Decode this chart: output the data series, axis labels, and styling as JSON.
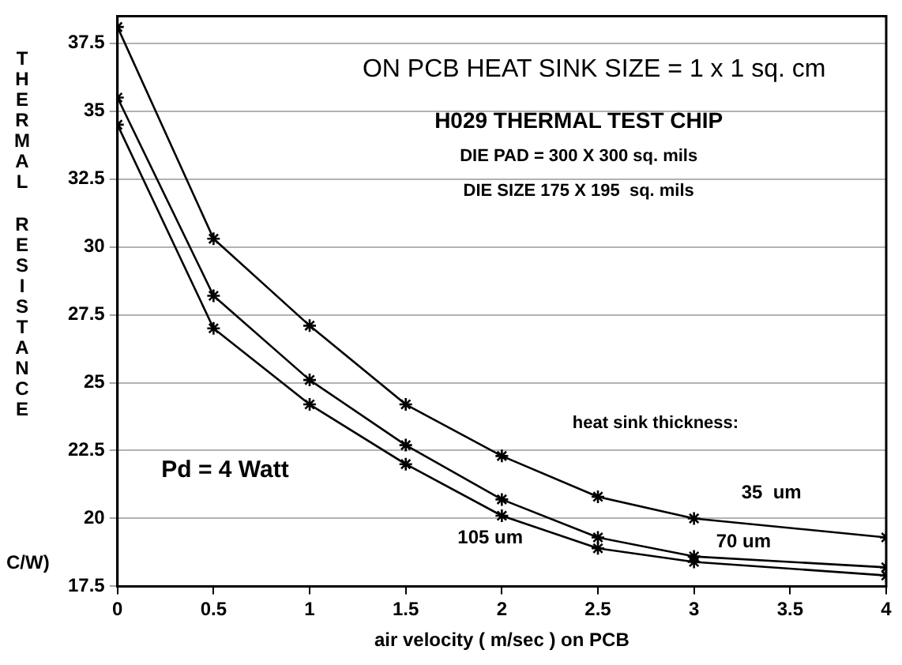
{
  "chart_data": {
    "type": "line",
    "title": "ON PCB HEAT SINK SIZE = 1 x 1 sq. cm",
    "xlabel": "air velocity ( m/sec ) on PCB",
    "ylabel": "THERMAL RESISTANCE C/W)",
    "legend_title": "heat sink thickness:",
    "annotations": [
      "H029 THERMAL TEST CHIP",
      "DIE PAD = 300 X 300 sq. mils",
      "DIE SIZE 175 X 195  sq. mils",
      "Pd = 4 Watt"
    ],
    "x": [
      0,
      0.5,
      1,
      1.5,
      2,
      2.5,
      3,
      4
    ],
    "series": [
      {
        "name": "35  um",
        "color": "#000000",
        "values": [
          38.1,
          30.3,
          27.1,
          24.2,
          22.3,
          20.8,
          20.0,
          19.3
        ]
      },
      {
        "name": "70 um",
        "color": "#000000",
        "values": [
          35.5,
          28.2,
          25.1,
          22.7,
          20.7,
          19.3,
          18.6,
          18.2
        ]
      },
      {
        "name": "105 um",
        "color": "#000000",
        "values": [
          34.5,
          27.0,
          24.2,
          22.0,
          20.1,
          18.9,
          18.4,
          17.9
        ]
      }
    ],
    "xlim": [
      0,
      4
    ],
    "xticks": [
      0,
      0.5,
      1,
      1.5,
      2,
      2.5,
      3,
      3.5,
      4
    ],
    "ylim": [
      17.5,
      38.5
    ],
    "yticks": [
      17.5,
      20,
      22.5,
      25,
      27.5,
      30,
      32.5,
      35,
      37.5
    ],
    "grid": "y",
    "legend": false,
    "marker": "cross",
    "line_style": "solid"
  }
}
